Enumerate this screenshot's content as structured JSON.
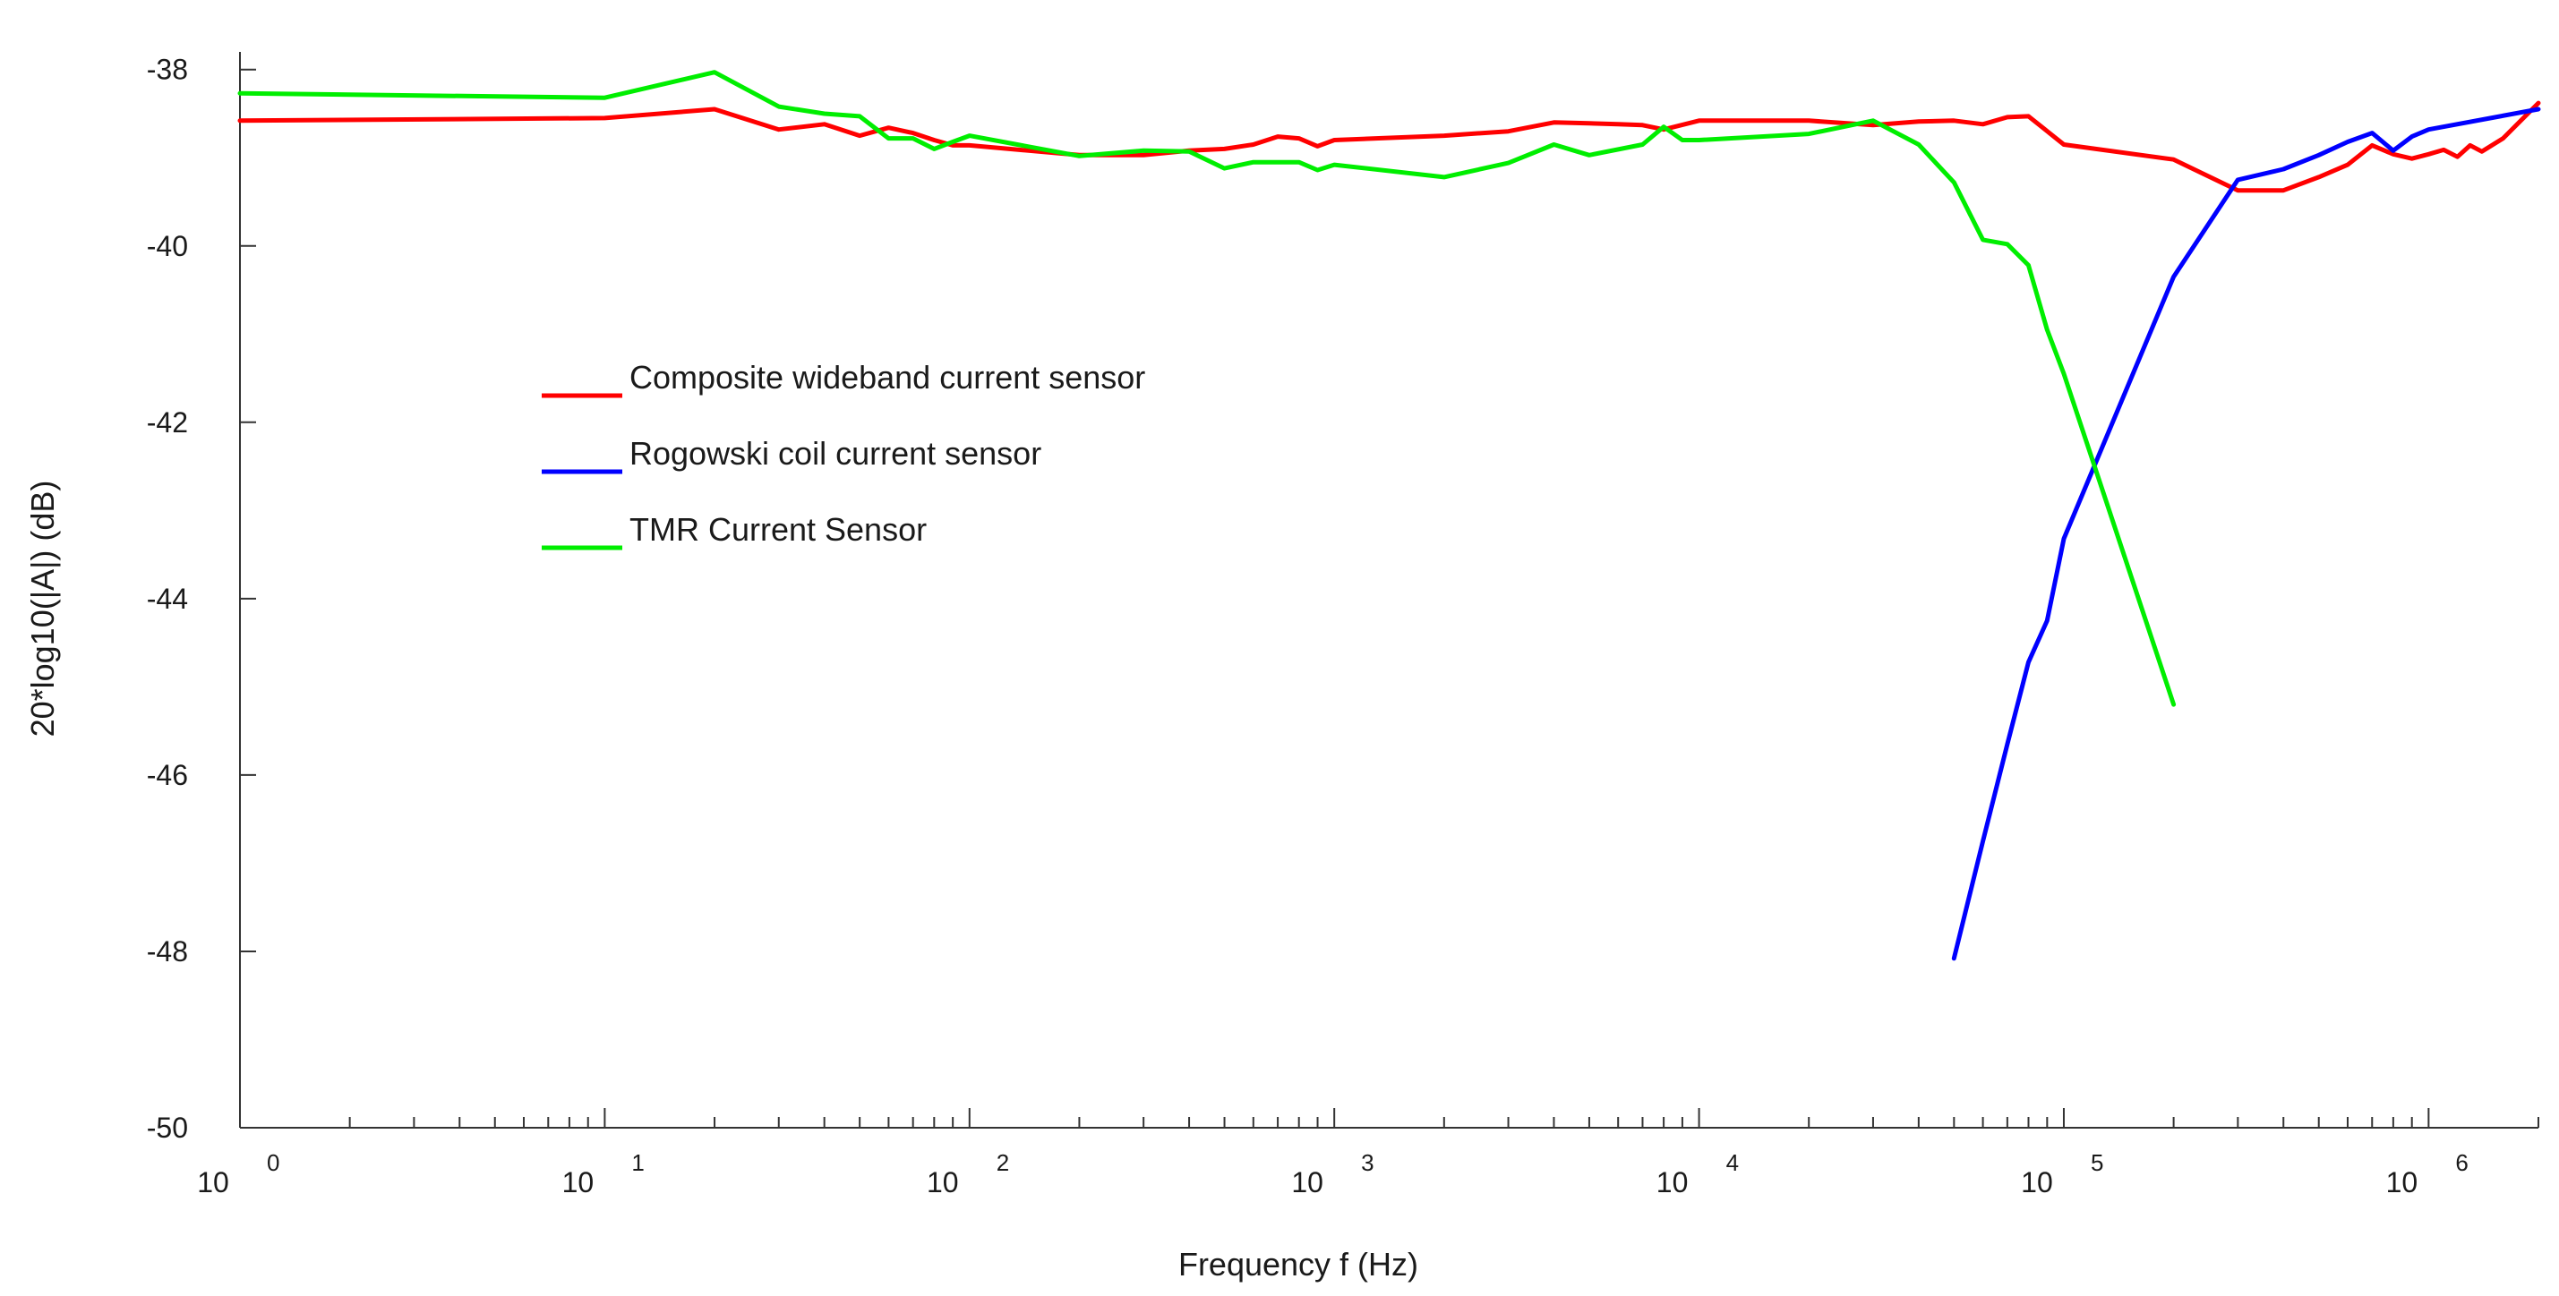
{
  "chart_data": {
    "type": "line",
    "xlabel": "Frequency f (Hz)",
    "ylabel": "20*log10(|A|) (dB)",
    "x_scale": "log",
    "xlim": [
      1,
      2000000
    ],
    "ylim": [
      -50,
      -37.8
    ],
    "y_ticks": [
      "-38",
      "-40",
      "-42",
      "-44",
      "-46",
      "-48",
      "-50"
    ],
    "y_tick_values": [
      -38,
      -40,
      -42,
      -44,
      -46,
      -48,
      -50
    ],
    "x_decade_exponents": [
      0,
      1,
      2,
      3,
      4,
      5,
      6
    ],
    "x_decade_base": "10",
    "x_decade_exponent_labels": [
      "0",
      "1",
      "2",
      "3",
      "4",
      "5",
      "6"
    ],
    "legend_placement": "upper-left inside",
    "grid": false,
    "series": [
      {
        "name": "Composite wideband current sensor",
        "color": "#ff0000",
        "points": [
          [
            1,
            -38.58
          ],
          [
            10,
            -38.55
          ],
          [
            20,
            -38.45
          ],
          [
            30,
            -38.68
          ],
          [
            40,
            -38.62
          ],
          [
            50,
            -38.75
          ],
          [
            60,
            -38.66
          ],
          [
            70,
            -38.72
          ],
          [
            80,
            -38.8
          ],
          [
            90,
            -38.86
          ],
          [
            100,
            -38.86
          ],
          [
            200,
            -38.97
          ],
          [
            300,
            -38.97
          ],
          [
            400,
            -38.92
          ],
          [
            500,
            -38.9
          ],
          [
            600,
            -38.85
          ],
          [
            700,
            -38.76
          ],
          [
            800,
            -38.78
          ],
          [
            900,
            -38.87
          ],
          [
            1000,
            -38.8
          ],
          [
            2000,
            -38.75
          ],
          [
            3000,
            -38.7
          ],
          [
            4000,
            -38.6
          ],
          [
            5000,
            -38.61
          ],
          [
            6000,
            -38.62
          ],
          [
            7000,
            -38.63
          ],
          [
            8000,
            -38.68
          ],
          [
            10000,
            -38.58
          ],
          [
            20000,
            -38.58
          ],
          [
            30000,
            -38.63
          ],
          [
            40000,
            -38.59
          ],
          [
            50000,
            -38.58
          ],
          [
            60000,
            -38.62
          ],
          [
            70000,
            -38.54
          ],
          [
            80000,
            -38.53
          ],
          [
            100000,
            -38.85
          ],
          [
            200000,
            -39.02
          ],
          [
            300000,
            -39.37
          ],
          [
            400000,
            -39.37
          ],
          [
            500000,
            -39.22
          ],
          [
            600000,
            -39.08
          ],
          [
            700000,
            -38.86
          ],
          [
            800000,
            -38.96
          ],
          [
            900000,
            -39.01
          ],
          [
            1000000,
            -38.96
          ],
          [
            1100000,
            -38.91
          ],
          [
            1200000,
            -38.99
          ],
          [
            1300000,
            -38.86
          ],
          [
            1400000,
            -38.93
          ],
          [
            1600000,
            -38.78
          ],
          [
            2000000,
            -38.38
          ]
        ]
      },
      {
        "name": "Rogowski coil current sensor",
        "color": "#0000ff",
        "points": [
          [
            50000,
            -48.08
          ],
          [
            60000,
            -46.75
          ],
          [
            70000,
            -45.65
          ],
          [
            80000,
            -44.72
          ],
          [
            90000,
            -44.25
          ],
          [
            100000,
            -43.32
          ],
          [
            200000,
            -40.35
          ],
          [
            300000,
            -39.25
          ],
          [
            400000,
            -39.13
          ],
          [
            500000,
            -38.97
          ],
          [
            600000,
            -38.82
          ],
          [
            700000,
            -38.72
          ],
          [
            800000,
            -38.92
          ],
          [
            900000,
            -38.76
          ],
          [
            1000000,
            -38.68
          ],
          [
            2000000,
            -38.45
          ]
        ]
      },
      {
        "name": "TMR Current Sensor",
        "color": "#00ee00",
        "points": [
          [
            1,
            -38.27
          ],
          [
            10,
            -38.32
          ],
          [
            20,
            -38.03
          ],
          [
            30,
            -38.42
          ],
          [
            40,
            -38.5
          ],
          [
            50,
            -38.53
          ],
          [
            60,
            -38.78
          ],
          [
            70,
            -38.78
          ],
          [
            80,
            -38.9
          ],
          [
            90,
            -38.82
          ],
          [
            100,
            -38.75
          ],
          [
            200,
            -38.98
          ],
          [
            300,
            -38.92
          ],
          [
            400,
            -38.93
          ],
          [
            500,
            -39.12
          ],
          [
            600,
            -39.05
          ],
          [
            700,
            -39.05
          ],
          [
            800,
            -39.05
          ],
          [
            900,
            -39.14
          ],
          [
            1000,
            -39.08
          ],
          [
            2000,
            -39.22
          ],
          [
            3000,
            -39.06
          ],
          [
            4000,
            -38.85
          ],
          [
            5000,
            -38.97
          ],
          [
            7000,
            -38.85
          ],
          [
            8000,
            -38.65
          ],
          [
            9000,
            -38.8
          ],
          [
            10000,
            -38.8
          ],
          [
            20000,
            -38.73
          ],
          [
            30000,
            -38.58
          ],
          [
            40000,
            -38.85
          ],
          [
            50000,
            -39.28
          ],
          [
            60000,
            -39.93
          ],
          [
            70000,
            -39.98
          ],
          [
            80000,
            -40.22
          ],
          [
            90000,
            -40.95
          ],
          [
            100000,
            -41.45
          ],
          [
            200000,
            -45.2
          ]
        ]
      }
    ]
  }
}
